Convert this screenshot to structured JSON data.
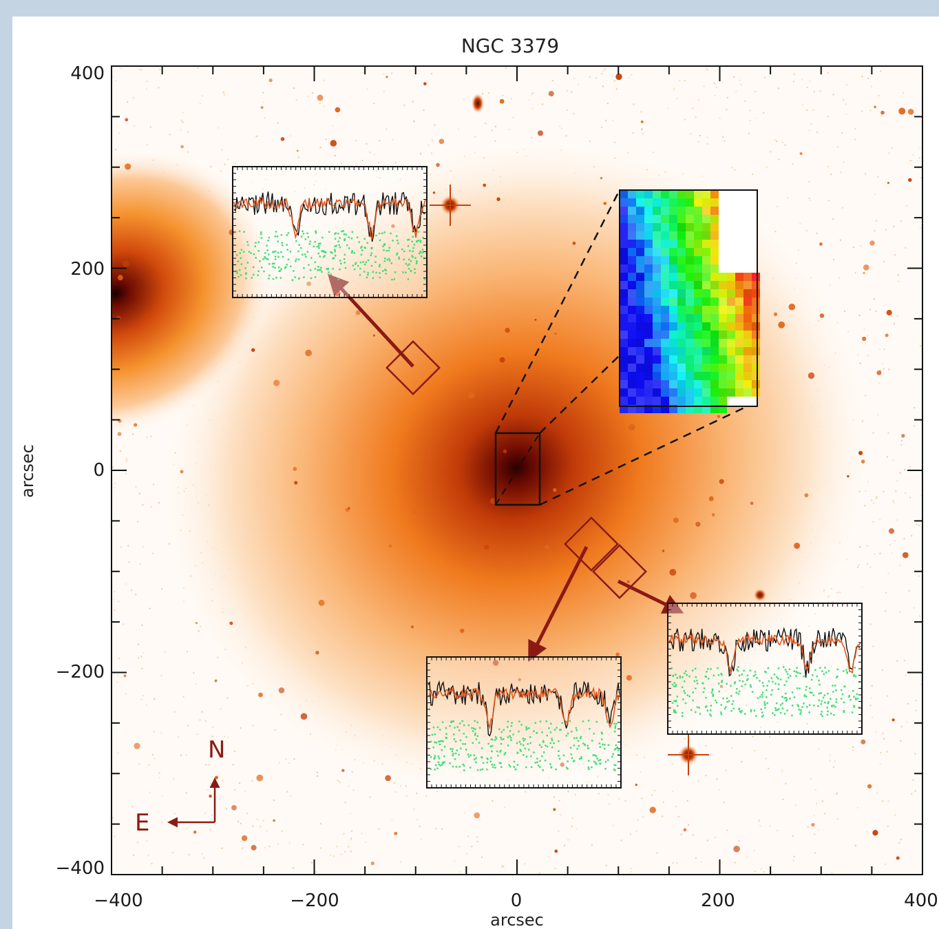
{
  "figure": {
    "title": "NGC 3379",
    "xlabel": "arcsec",
    "ylabel": "arcsec",
    "x_ticks": [
      "−400",
      "−200",
      "0",
      "200",
      "400"
    ],
    "y_ticks": [
      "400",
      "200",
      "0",
      "−200",
      "−400"
    ],
    "compass": {
      "north": "N",
      "east": "E"
    }
  },
  "colors": {
    "galaxy_core": "#3a0000",
    "galaxy_halo": "#f07a1e",
    "arrow": "#8b1a14",
    "spectrum_fit": "#e0561e",
    "residuals": "#3ee07a"
  },
  "panels": [
    {
      "name": "spectrum-inset-upper-left"
    },
    {
      "name": "velocity-map-inset"
    },
    {
      "name": "spectrum-inset-lower-middle"
    },
    {
      "name": "spectrum-inset-lower-right"
    }
  ]
}
